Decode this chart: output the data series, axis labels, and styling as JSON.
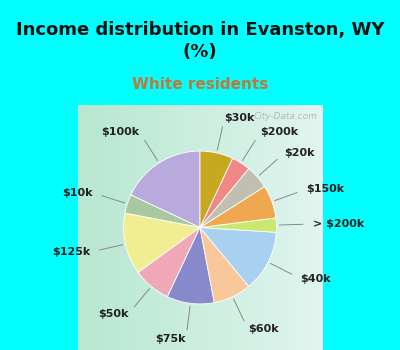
{
  "title": "Income distribution in Evanston, WY\n(%)",
  "subtitle": "White residents",
  "labels": [
    "$100k",
    "$10k",
    "$125k",
    "$50k",
    "$75k",
    "$60k",
    "$40k",
    "> $200k",
    "$150k",
    "$20k",
    "$200k",
    "$30k"
  ],
  "values": [
    18,
    4,
    13,
    8,
    10,
    8,
    13,
    3,
    7,
    5,
    4,
    7
  ],
  "colors": [
    "#b8aadc",
    "#a8c8a0",
    "#f0ee90",
    "#f0a8b8",
    "#8888cc",
    "#f8c89a",
    "#a8d0f0",
    "#c8e870",
    "#f0a850",
    "#c0c0b0",
    "#f08888",
    "#c8a820"
  ],
  "bg_cyan": "#00ffff",
  "bg_chart_left": "#b8e8d0",
  "bg_chart_right": "#e8f8f0",
  "title_color": "#111111",
  "subtitle_color": "#c07838",
  "watermark": "City-Data.com",
  "startangle": 90,
  "label_fontsize": 8,
  "title_fontsize": 13,
  "subtitle_fontsize": 11
}
